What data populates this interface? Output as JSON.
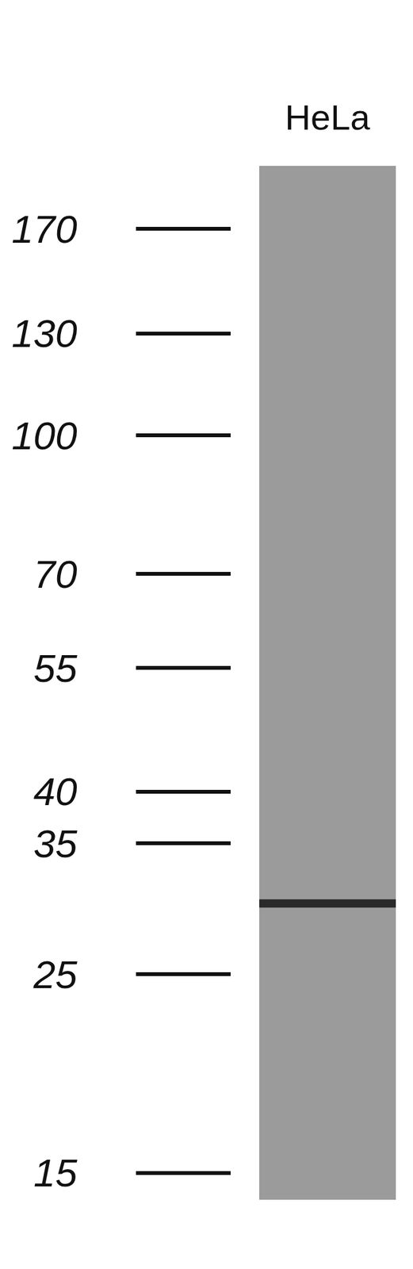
{
  "chart_data": {
    "type": "blot",
    "categories": [
      "HeLa"
    ],
    "values": [
      30
    ],
    "color": "#2a2a2a",
    "ylim": [
      14,
      200
    ],
    "yticks": [
      15,
      25,
      35,
      40,
      55,
      70,
      100,
      130,
      170
    ],
    "log": "y",
    "grid": false
  }
}
